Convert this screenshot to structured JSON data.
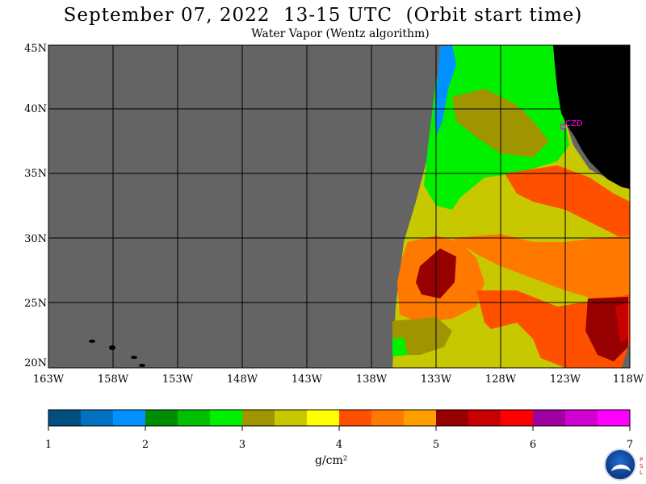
{
  "header": {
    "title": "September 07, 2022  13-15 UTC  (Orbit start time)",
    "subtitle": "Water Vapor (Wentz algorithm)"
  },
  "map": {
    "lat_labels": [
      "45N",
      "40N",
      "35N",
      "30N",
      "25N",
      "20N"
    ],
    "lon_labels": [
      "163W",
      "158W",
      "153W",
      "148W",
      "143W",
      "138W",
      "133W",
      "128W",
      "123W",
      "118W"
    ],
    "station_label": "CZD",
    "no_data_color": "#646464",
    "land_color": "#000000",
    "station_color": "#ff00ff"
  },
  "colorbar": {
    "colors": [
      "#004f80",
      "#0070c0",
      "#0090ff",
      "#008c00",
      "#00c000",
      "#00f000",
      "#a09400",
      "#c8c800",
      "#ffff00",
      "#ff5000",
      "#ff7800",
      "#ffa000",
      "#960000",
      "#c80000",
      "#ff0000",
      "#a000a0",
      "#d000d0",
      "#ff00ff"
    ],
    "ticks": [
      "1",
      "2",
      "3",
      "4",
      "5",
      "6",
      "7"
    ],
    "unit": "g/cm²"
  },
  "logo": {
    "name": "NOAA",
    "side_text": "PSL"
  }
}
